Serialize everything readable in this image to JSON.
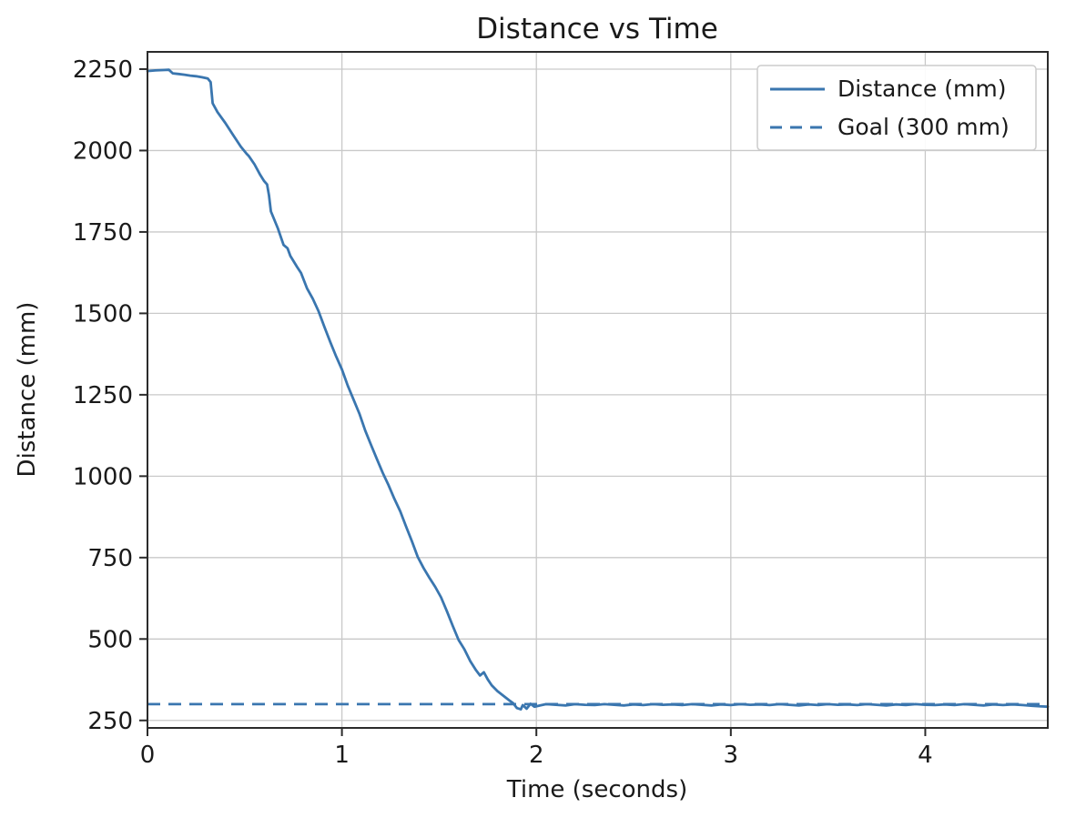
{
  "figure": {
    "background": "#ffffff"
  },
  "chart_data": {
    "type": "line",
    "title": "Distance vs Time",
    "xlabel": "Time (seconds)",
    "ylabel": "Distance (mm)",
    "xlim": [
      0,
      4.63
    ],
    "ylim": [
      227,
      2303
    ],
    "xticks": [
      0,
      1,
      2,
      3,
      4
    ],
    "yticks": [
      250,
      500,
      750,
      1000,
      1250,
      1500,
      1750,
      2000,
      2250
    ],
    "grid": true,
    "legend_position": "upper right",
    "colors": {
      "line_blue": "#3a76af",
      "grid_gray": "#c9c9c9",
      "spine_dark": "#2b2b2b",
      "text_dark": "#1a1a1a",
      "legend_border": "#cccccc",
      "legend_fill": "#ffffff"
    },
    "goal_value": 300,
    "series": [
      {
        "name": "Distance (mm)",
        "style": "solid",
        "x": [
          0.0,
          0.04,
          0.08,
          0.11,
          0.13,
          0.16,
          0.19,
          0.22,
          0.25,
          0.28,
          0.31,
          0.325,
          0.335,
          0.36,
          0.4,
          0.44,
          0.48,
          0.51,
          0.52,
          0.55,
          0.58,
          0.6,
          0.615,
          0.625,
          0.635,
          0.67,
          0.7,
          0.72,
          0.735,
          0.77,
          0.79,
          0.82,
          0.85,
          0.88,
          0.91,
          0.94,
          0.97,
          1.0,
          1.03,
          1.06,
          1.09,
          1.12,
          1.15,
          1.18,
          1.21,
          1.24,
          1.27,
          1.3,
          1.33,
          1.36,
          1.39,
          1.42,
          1.45,
          1.48,
          1.51,
          1.54,
          1.57,
          1.6,
          1.63,
          1.66,
          1.69,
          1.71,
          1.73,
          1.75,
          1.77,
          1.8,
          1.83,
          1.86,
          1.88,
          1.9,
          1.92,
          1.93,
          1.95,
          1.97,
          1.99,
          2.02,
          2.05,
          2.1,
          2.15,
          2.2,
          2.25,
          2.3,
          2.35,
          2.4,
          2.45,
          2.5,
          2.55,
          2.6,
          2.65,
          2.7,
          2.75,
          2.8,
          2.85,
          2.9,
          2.95,
          3.0,
          3.05,
          3.1,
          3.15,
          3.2,
          3.25,
          3.3,
          3.35,
          3.4,
          3.45,
          3.5,
          3.55,
          3.6,
          3.65,
          3.7,
          3.75,
          3.8,
          3.85,
          3.9,
          3.95,
          4.0,
          4.05,
          4.1,
          4.15,
          4.2,
          4.25,
          4.3,
          4.35,
          4.4,
          4.45,
          4.5,
          4.55,
          4.6,
          4.63
        ],
        "y": [
          2244,
          2246,
          2247,
          2248,
          2237,
          2235,
          2233,
          2230,
          2228,
          2225,
          2221,
          2210,
          2145,
          2118,
          2085,
          2048,
          2012,
          1990,
          1984,
          1958,
          1925,
          1906,
          1896,
          1862,
          1813,
          1762,
          1710,
          1700,
          1676,
          1642,
          1624,
          1577,
          1545,
          1506,
          1458,
          1412,
          1368,
          1328,
          1278,
          1235,
          1192,
          1140,
          1096,
          1052,
          1010,
          972,
          930,
          892,
          845,
          800,
          752,
          718,
          688,
          660,
          628,
          585,
          540,
          497,
          468,
          432,
          404,
          388,
          398,
          376,
          358,
          340,
          326,
          312,
          303,
          288,
          284,
          297,
          286,
          301,
          292,
          296,
          300,
          298,
          296,
          300,
          298,
          297,
          300,
          298,
          296,
          299,
          297,
          300,
          298,
          299,
          297,
          300,
          298,
          296,
          299,
          297,
          300,
          298,
          299,
          297,
          300,
          298,
          296,
          299,
          297,
          300,
          298,
          299,
          297,
          300,
          298,
          296,
          299,
          297,
          300,
          298,
          297,
          299,
          297,
          300,
          298,
          296,
          299,
          297,
          299,
          297,
          295,
          293,
          292
        ]
      },
      {
        "name": "Goal (300 mm)",
        "style": "dashed",
        "hline": 300
      }
    ]
  }
}
